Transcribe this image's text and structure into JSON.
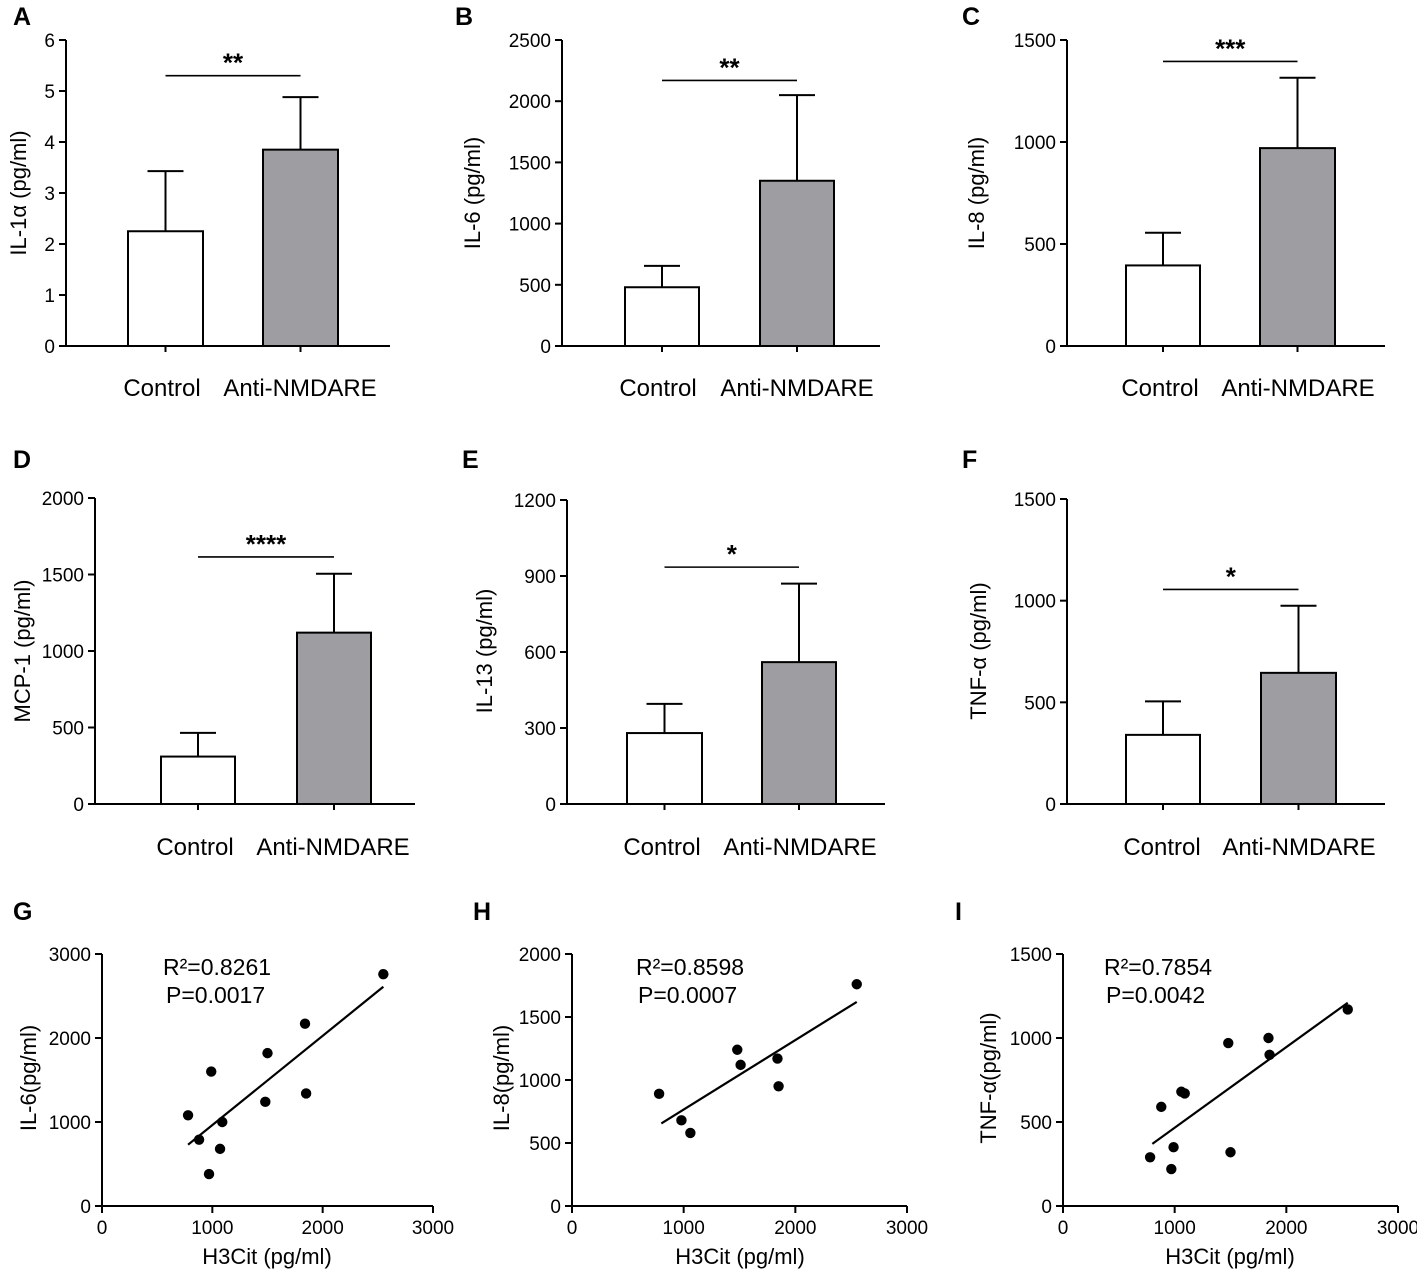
{
  "colors": {
    "control_fill": "#ffffff",
    "anti_fill": "#9e9ea2",
    "stroke": "#000000"
  },
  "chart_data": [
    {
      "id": "A",
      "panel": "A",
      "type": "bar",
      "ylabel": "IL-1α (pg/ml)",
      "categories": [
        "Control",
        "Anti-NMDARE"
      ],
      "values": [
        2.25,
        3.85
      ],
      "errors": [
        1.18,
        1.03
      ],
      "ylim": [
        0,
        6
      ],
      "yticks": [
        0,
        1,
        2,
        3,
        4,
        5,
        6
      ],
      "significance": "**",
      "sig_y": 5.3
    },
    {
      "id": "B",
      "panel": "B",
      "type": "bar",
      "ylabel": "IL-6 (pg/ml)",
      "categories": [
        "Control",
        "Anti-NMDARE"
      ],
      "values": [
        480,
        1350
      ],
      "errors": [
        175,
        700
      ],
      "ylim": [
        0,
        2500
      ],
      "yticks": [
        0,
        500,
        1000,
        1500,
        2000,
        2500
      ],
      "significance": "**",
      "sig_y": 2170
    },
    {
      "id": "C",
      "panel": "C",
      "type": "bar",
      "ylabel": "IL-8 (pg/ml)",
      "categories": [
        "Control",
        "Anti-NMDARE"
      ],
      "values": [
        395,
        970
      ],
      "errors": [
        160,
        345
      ],
      "ylim": [
        0,
        1500
      ],
      "yticks": [
        0,
        500,
        1000,
        1500
      ],
      "significance": "***",
      "sig_y": 1395
    },
    {
      "id": "D",
      "panel": "D",
      "type": "bar",
      "ylabel": "MCP-1 (pg/ml)",
      "categories": [
        "Control",
        "Anti-NMDARE"
      ],
      "values": [
        310,
        1120
      ],
      "errors": [
        155,
        385
      ],
      "ylim": [
        0,
        2000
      ],
      "yticks": [
        0,
        500,
        1000,
        1500,
        2000
      ],
      "significance": "****",
      "sig_y": 1615
    },
    {
      "id": "E",
      "panel": "E",
      "type": "bar",
      "ylabel": "IL-13 (pg/ml)",
      "categories": [
        "Control",
        "Anti-NMDARE"
      ],
      "values": [
        280,
        560
      ],
      "errors": [
        115,
        310
      ],
      "ylim": [
        0,
        1200
      ],
      "yticks": [
        0,
        300,
        600,
        900,
        1200
      ],
      "significance": "*",
      "sig_y": 935
    },
    {
      "id": "F",
      "panel": "F",
      "type": "bar",
      "ylabel": "TNF-α (pg/ml)",
      "categories": [
        "Control",
        "Anti-NMDARE"
      ],
      "values": [
        340,
        645
      ],
      "errors": [
        165,
        330
      ],
      "ylim": [
        0,
        1500
      ],
      "yticks": [
        0,
        500,
        1000,
        1500
      ],
      "significance": "*",
      "sig_y": 1055
    },
    {
      "id": "G",
      "panel": "G",
      "type": "scatter",
      "ylabel": "IL-6(pg/ml)",
      "xlabel": "H3Cit (pg/ml)",
      "xlim": [
        0,
        3000
      ],
      "xticks": [
        0,
        1000,
        2000,
        3000
      ],
      "ylim": [
        0,
        3000
      ],
      "yticks": [
        0,
        1000,
        2000,
        3000
      ],
      "points": [
        [
          780,
          1080
        ],
        [
          880,
          790
        ],
        [
          970,
          380
        ],
        [
          990,
          1600
        ],
        [
          1070,
          680
        ],
        [
          1090,
          1000
        ],
        [
          1480,
          1240
        ],
        [
          1500,
          1820
        ],
        [
          1840,
          2170
        ],
        [
          1850,
          1340
        ],
        [
          2550,
          2760
        ]
      ],
      "fit": [
        [
          780,
          730
        ],
        [
          2550,
          2610
        ]
      ],
      "r2_label": "R²=0.8261",
      "p_label": "P=0.0017"
    },
    {
      "id": "H",
      "panel": "H",
      "type": "scatter",
      "ylabel": "IL-8(pg/ml)",
      "xlabel": "H3Cit (pg/ml)",
      "xlim": [
        0,
        3000
      ],
      "xticks": [
        0,
        1000,
        2000,
        3000
      ],
      "ylim": [
        0,
        2000
      ],
      "yticks": [
        0,
        500,
        1000,
        1500,
        2000
      ],
      "points": [
        [
          780,
          890
        ],
        [
          980,
          680
        ],
        [
          1060,
          580
        ],
        [
          1480,
          1240
        ],
        [
          1510,
          1120
        ],
        [
          1840,
          1170
        ],
        [
          1850,
          950
        ],
        [
          2550,
          1760
        ]
      ],
      "fit": [
        [
          800,
          655
        ],
        [
          2550,
          1620
        ]
      ],
      "r2_label": "R²=0.8598",
      "p_label": "P=0.0007"
    },
    {
      "id": "I",
      "panel": "I",
      "type": "scatter",
      "ylabel": "TNF-α(pg/ml)",
      "xlabel": "H3Cit (pg/ml)",
      "xlim": [
        0,
        3000
      ],
      "xticks": [
        0,
        1000,
        2000,
        3000
      ],
      "ylim": [
        0,
        1500
      ],
      "yticks": [
        0,
        500,
        1000,
        1500
      ],
      "points": [
        [
          780,
          290
        ],
        [
          880,
          590
        ],
        [
          970,
          220
        ],
        [
          990,
          350
        ],
        [
          1060,
          680
        ],
        [
          1090,
          670
        ],
        [
          1480,
          970
        ],
        [
          1500,
          320
        ],
        [
          1840,
          1000
        ],
        [
          1850,
          900
        ],
        [
          2550,
          1170
        ]
      ],
      "fit": [
        [
          800,
          370
        ],
        [
          2550,
          1210
        ]
      ],
      "r2_label": "R²=0.7854",
      "p_label": "P=0.0042"
    }
  ]
}
